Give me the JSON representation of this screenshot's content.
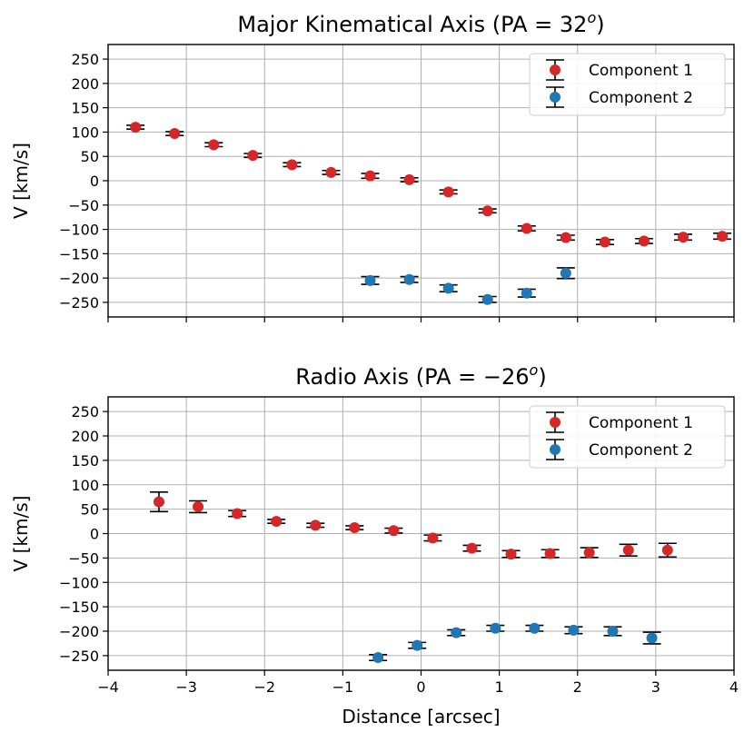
{
  "chart_data": [
    {
      "type": "scatter",
      "title_main": "Major Kinematical Axis (PA = 32",
      "title_sup": "o",
      "title_end": ")",
      "xlabel": "",
      "ylabel": "V [km/s]",
      "xlim": [
        -4,
        4
      ],
      "ylim": [
        -280,
        280
      ],
      "xticks": [
        -4,
        -3,
        -2,
        -1,
        0,
        1,
        2,
        3,
        4
      ],
      "xtick_labels_visible": false,
      "yticks": [
        -250,
        -200,
        -150,
        -100,
        -50,
        0,
        50,
        100,
        150,
        200,
        250
      ],
      "grid": true,
      "legend_position": "top-right",
      "series": [
        {
          "name": "Component 1",
          "color": "#d62728",
          "x": [
            -3.65,
            -3.15,
            -2.65,
            -2.15,
            -1.65,
            -1.15,
            -0.65,
            -0.15,
            0.35,
            0.85,
            1.35,
            1.85,
            2.35,
            2.85,
            3.35,
            3.85
          ],
          "y": [
            110,
            97,
            74,
            52,
            33,
            17,
            10,
            2,
            -23,
            -62,
            -98,
            -117,
            -126,
            -124,
            -116,
            -114
          ],
          "yerr": [
            4,
            4,
            4,
            4,
            4,
            4,
            5,
            4,
            4,
            4,
            5,
            5,
            5,
            5,
            6,
            6
          ]
        },
        {
          "name": "Component 2",
          "color": "#1f77b4",
          "x": [
            -0.65,
            -0.15,
            0.35,
            0.85,
            1.35,
            1.85
          ],
          "y": [
            -205,
            -203,
            -221,
            -244,
            -231,
            -190
          ],
          "yerr": [
            8,
            6,
            7,
            6,
            8,
            11
          ]
        }
      ]
    },
    {
      "type": "scatter",
      "title_main": "Radio Axis (PA = −26",
      "title_sup": "o",
      "title_end": ")",
      "xlabel": "Distance [arcsec]",
      "ylabel": "V [km/s]",
      "xlim": [
        -4,
        4
      ],
      "ylim": [
        -280,
        280
      ],
      "xticks": [
        -4,
        -3,
        -2,
        -1,
        0,
        1,
        2,
        3,
        4
      ],
      "xtick_labels": [
        "−4",
        "−3",
        "−2",
        "−1",
        "0",
        "1",
        "2",
        "3",
        "4"
      ],
      "xtick_labels_visible": true,
      "yticks": [
        -250,
        -200,
        -150,
        -100,
        -50,
        0,
        50,
        100,
        150,
        200,
        250
      ],
      "grid": true,
      "legend_position": "top-right",
      "series": [
        {
          "name": "Component 1",
          "color": "#d62728",
          "x": [
            -3.35,
            -2.85,
            -2.35,
            -1.85,
            -1.35,
            -0.85,
            -0.35,
            0.15,
            0.65,
            1.15,
            1.65,
            2.15,
            2.65,
            3.15
          ],
          "y": [
            65,
            55,
            41,
            25,
            17,
            12,
            6,
            -9,
            -30,
            -42,
            -41,
            -39,
            -34,
            -34
          ],
          "yerr": [
            20,
            12,
            6,
            4,
            4,
            4,
            5,
            6,
            6,
            7,
            8,
            10,
            12,
            14
          ]
        },
        {
          "name": "Component 2",
          "color": "#1f77b4",
          "x": [
            -0.55,
            -0.05,
            0.45,
            0.95,
            1.45,
            1.95,
            2.45,
            2.95
          ],
          "y": [
            -254,
            -229,
            -203,
            -194,
            -194,
            -198,
            -200,
            -214
          ],
          "yerr": [
            6,
            6,
            6,
            6,
            6,
            7,
            9,
            12
          ]
        }
      ]
    }
  ]
}
